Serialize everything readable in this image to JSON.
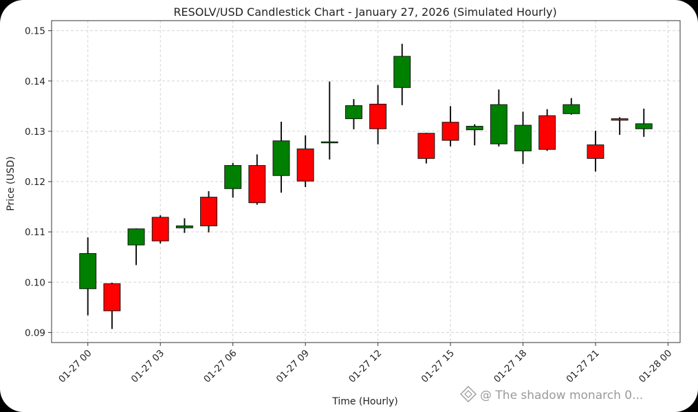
{
  "chart_data": {
    "type": "candlestick",
    "title": "RESOLV/USD Candlestick Chart - January 27, 2026 (Simulated Hourly)",
    "xlabel": "Time (Hourly)",
    "ylabel": "Price (USD)",
    "ylim": [
      0.088,
      0.152
    ],
    "yticks": [
      0.09,
      0.1,
      0.11,
      0.12,
      0.13,
      0.14,
      0.15
    ],
    "ytick_labels": [
      "0.09",
      "0.10",
      "0.11",
      "0.12",
      "0.13",
      "0.14",
      "0.15"
    ],
    "xlim": [
      -1.5,
      24.5
    ],
    "xticks": [
      0,
      3,
      6,
      9,
      12,
      15,
      18,
      21,
      24
    ],
    "xtick_labels": [
      "01-27 00",
      "01-27 03",
      "01-27 06",
      "01-27 09",
      "01-27 12",
      "01-27 15",
      "01-27 18",
      "01-27 21",
      "01-28 00"
    ],
    "grid": true,
    "up_color": "#008000",
    "down_color": "#ff0000",
    "candles": [
      {
        "x": 0,
        "open": 0.0987,
        "high": 0.1089,
        "low": 0.0934,
        "close": 0.1057
      },
      {
        "x": 1,
        "open": 0.0997,
        "high": 0.0999,
        "low": 0.0907,
        "close": 0.0943
      },
      {
        "x": 2,
        "open": 0.1074,
        "high": 0.1107,
        "low": 0.1034,
        "close": 0.1106
      },
      {
        "x": 3,
        "open": 0.1129,
        "high": 0.1133,
        "low": 0.1077,
        "close": 0.1082
      },
      {
        "x": 4,
        "open": 0.1108,
        "high": 0.1127,
        "low": 0.1098,
        "close": 0.1112
      },
      {
        "x": 5,
        "open": 0.1169,
        "high": 0.1181,
        "low": 0.1099,
        "close": 0.1112
      },
      {
        "x": 6,
        "open": 0.1186,
        "high": 0.1237,
        "low": 0.1168,
        "close": 0.1232
      },
      {
        "x": 7,
        "open": 0.1232,
        "high": 0.1254,
        "low": 0.1154,
        "close": 0.1158
      },
      {
        "x": 8,
        "open": 0.1212,
        "high": 0.1319,
        "low": 0.1178,
        "close": 0.1281
      },
      {
        "x": 9,
        "open": 0.1265,
        "high": 0.1292,
        "low": 0.1189,
        "close": 0.1201
      },
      {
        "x": 10,
        "open": 0.1279,
        "high": 0.1399,
        "low": 0.1244,
        "close": 0.1279
      },
      {
        "x": 11,
        "open": 0.1325,
        "high": 0.1364,
        "low": 0.1304,
        "close": 0.1351
      },
      {
        "x": 12,
        "open": 0.1354,
        "high": 0.1392,
        "low": 0.1274,
        "close": 0.1305
      },
      {
        "x": 13,
        "open": 0.1387,
        "high": 0.1474,
        "low": 0.1352,
        "close": 0.1449
      },
      {
        "x": 14,
        "open": 0.1296,
        "high": 0.1297,
        "low": 0.1236,
        "close": 0.1246
      },
      {
        "x": 15,
        "open": 0.1318,
        "high": 0.135,
        "low": 0.127,
        "close": 0.1282
      },
      {
        "x": 16,
        "open": 0.1303,
        "high": 0.1314,
        "low": 0.1272,
        "close": 0.131
      },
      {
        "x": 17,
        "open": 0.1275,
        "high": 0.1383,
        "low": 0.127,
        "close": 0.1353
      },
      {
        "x": 18,
        "open": 0.1261,
        "high": 0.1339,
        "low": 0.1235,
        "close": 0.1312
      },
      {
        "x": 19,
        "open": 0.1331,
        "high": 0.1344,
        "low": 0.1261,
        "close": 0.1264
      },
      {
        "x": 20,
        "open": 0.1335,
        "high": 0.1366,
        "low": 0.1333,
        "close": 0.1353
      },
      {
        "x": 21,
        "open": 0.1273,
        "high": 0.1301,
        "low": 0.122,
        "close": 0.1246
      },
      {
        "x": 22,
        "open": 0.1325,
        "high": 0.1328,
        "low": 0.1293,
        "close": 0.1322
      },
      {
        "x": 23,
        "open": 0.1305,
        "high": 0.1345,
        "low": 0.1289,
        "close": 0.1315
      }
    ]
  },
  "watermark": {
    "text": "@ The shadow monarch 0...",
    "icon": "diamond-logo-icon"
  },
  "colors": {
    "frame_bg": "#000000",
    "plot_bg": "#ffffff",
    "grid": "#d3d3d3",
    "axis": "#333333"
  }
}
